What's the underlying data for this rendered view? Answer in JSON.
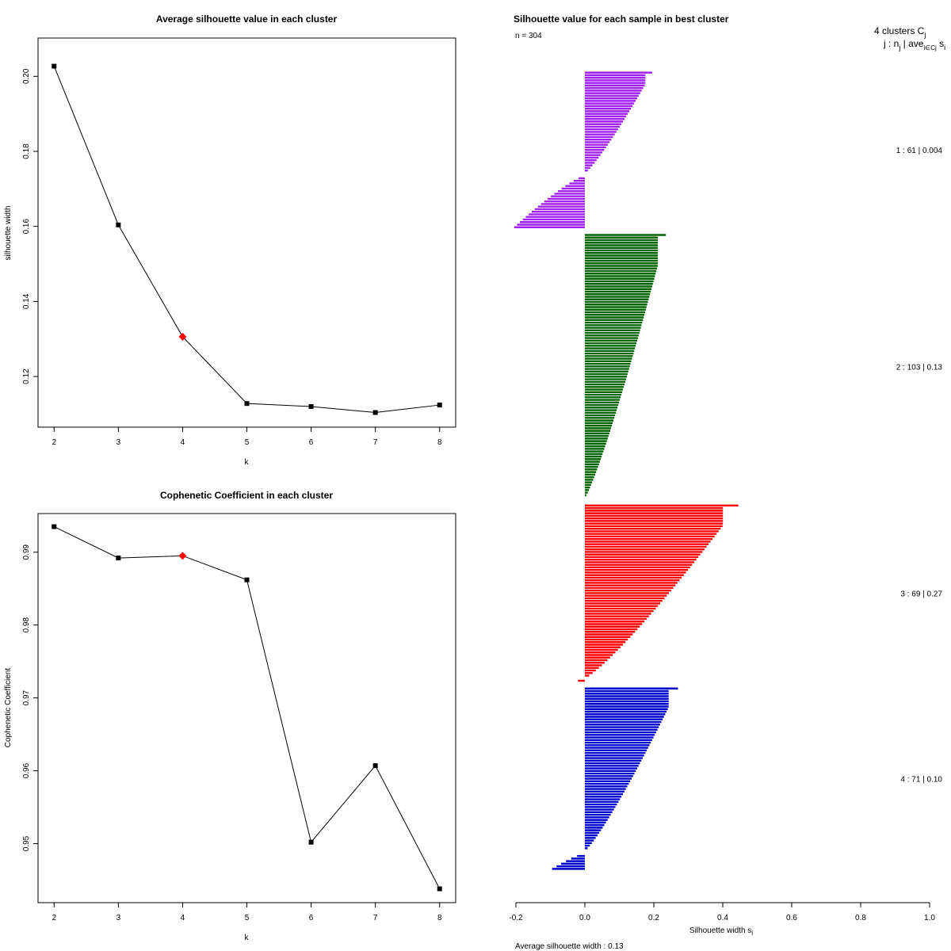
{
  "chart_data": [
    {
      "type": "line",
      "title": "Average silhouette value in each cluster",
      "xlabel": "k",
      "ylabel": "silhouette width",
      "x": [
        2,
        3,
        4,
        5,
        6,
        7,
        8
      ],
      "y": [
        0.2027,
        0.1604,
        0.1306,
        0.1128,
        0.112,
        0.1104,
        0.1124
      ],
      "highlight_k": 4,
      "highlight_color": "#ff0000",
      "xlim": [
        1.75,
        8.25
      ],
      "ylim": [
        0.1065,
        0.2102
      ],
      "xticks": [
        2,
        3,
        4,
        5,
        6,
        7,
        8
      ],
      "yticks": [
        0.12,
        0.14,
        0.16,
        0.18,
        0.2
      ],
      "ytick_labels": [
        "0.12",
        "0.14",
        "0.16",
        "0.18",
        "0.20"
      ]
    },
    {
      "type": "line",
      "title": "Cophenetic Coefficient in each cluster",
      "xlabel": "k",
      "ylabel": "Cophenetic Coefficient",
      "x": [
        2,
        3,
        4,
        5,
        6,
        7,
        8
      ],
      "y": [
        0.9935,
        0.9892,
        0.9895,
        0.9862,
        0.9502,
        0.9607,
        0.9438
      ],
      "highlight_k": 4,
      "highlight_color": "#ff0000",
      "xlim": [
        1.75,
        8.25
      ],
      "ylim": [
        0.9419,
        0.9953
      ],
      "xticks": [
        2,
        3,
        4,
        5,
        6,
        7,
        8
      ],
      "yticks": [
        0.95,
        0.96,
        0.97,
        0.98,
        0.99
      ],
      "ytick_labels": [
        "0.95",
        "0.96",
        "0.97",
        "0.98",
        "0.99"
      ]
    },
    {
      "type": "bar",
      "orientation": "horizontal",
      "title": "Silhouette value for each sample in best cluster",
      "n_label": "n = 304",
      "header_line1": "4  clusters  C",
      "header_line1_sub": "j",
      "header_line2": "j :  n",
      "header_line2_sub": "j",
      "header_line2_rest": " | ave",
      "header_line2_rest_sub": "i∈Cj",
      "header_line2_end": " s",
      "header_line2_end_sub": "i",
      "xlabel": "Silhouette width s",
      "xlabel_sub": "i",
      "footer_label": "Average silhouette width :  0.13",
      "xlim": [
        -0.2,
        1.0
      ],
      "xticks": [
        -0.2,
        0.0,
        0.2,
        0.4,
        0.6,
        0.8,
        1.0
      ],
      "xtick_labels": [
        "-0.2",
        "0.0",
        "0.2",
        "0.4",
        "0.6",
        "0.8",
        "1.0"
      ],
      "clusters": [
        {
          "id": 1,
          "n": 61,
          "avg": 0.004,
          "label": "1 :   61  |  0.004",
          "color": "#a020f0",
          "max": 0.195,
          "min": -0.205,
          "zero_frac": 0.66
        },
        {
          "id": 2,
          "n": 103,
          "avg": 0.13,
          "label": "2 :   103  |  0.13",
          "color": "#006400",
          "max": 0.235,
          "min": 0.005,
          "zero_frac": 1.0
        },
        {
          "id": 3,
          "n": 69,
          "avg": 0.27,
          "label": "3 :   69  |  0.27",
          "color": "#ff0000",
          "max": 0.445,
          "min": -0.02,
          "zero_frac": 0.985
        },
        {
          "id": 4,
          "n": 71,
          "avg": 0.1,
          "label": "4 :   71  |  0.10",
          "color": "#0000cd",
          "max": 0.27,
          "min": -0.095,
          "zero_frac": 0.9
        }
      ]
    }
  ]
}
